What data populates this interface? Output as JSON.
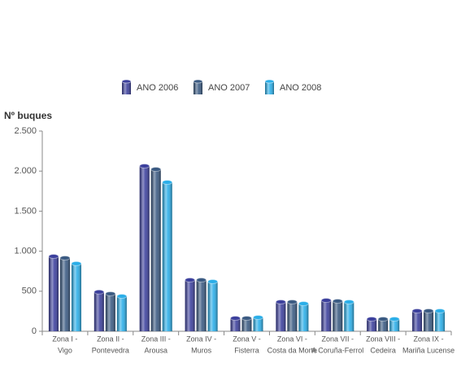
{
  "chart_data": {
    "type": "bar",
    "y_axis_label": "Nº buques",
    "categories": [
      [
        "Zona I -",
        "Vigo"
      ],
      [
        "Zona II -",
        "Pontevedra"
      ],
      [
        "Zona III -",
        "Arousa"
      ],
      [
        "Zona IV -",
        "Muros"
      ],
      [
        "Zona V -",
        "Fisterra"
      ],
      [
        "Zona VI -",
        "Costa da Morte"
      ],
      [
        "Zona VII -",
        "A Coruña-Ferrol"
      ],
      [
        "Zona VIII -",
        "Cedeira"
      ],
      [
        "Zona IX -",
        "Mariña Lucense"
      ]
    ],
    "series": [
      {
        "name": "ANO 2006",
        "color": "#3b3f9c",
        "values": [
          935,
          490,
          2063,
          640,
          163,
          366,
          386,
          152,
          254
        ]
      },
      {
        "name": "ANO 2007",
        "color": "#3a5a82",
        "values": [
          915,
          468,
          2022,
          640,
          163,
          366,
          376,
          152,
          254
        ]
      },
      {
        "name": "ANO 2008",
        "color": "#2aaee8",
        "values": [
          845,
          437,
          1860,
          620,
          173,
          345,
          366,
          152,
          254
        ]
      }
    ],
    "ylim": [
      0,
      2500
    ],
    "yticks": [
      0,
      500,
      {
        "value": 1000,
        "label": "1.000"
      },
      {
        "value": 1500,
        "label": "1.500"
      },
      {
        "value": 2000,
        "label": "2.000"
      },
      {
        "value": 2500,
        "label": "2.500"
      }
    ],
    "grid": false,
    "legend": "top"
  }
}
